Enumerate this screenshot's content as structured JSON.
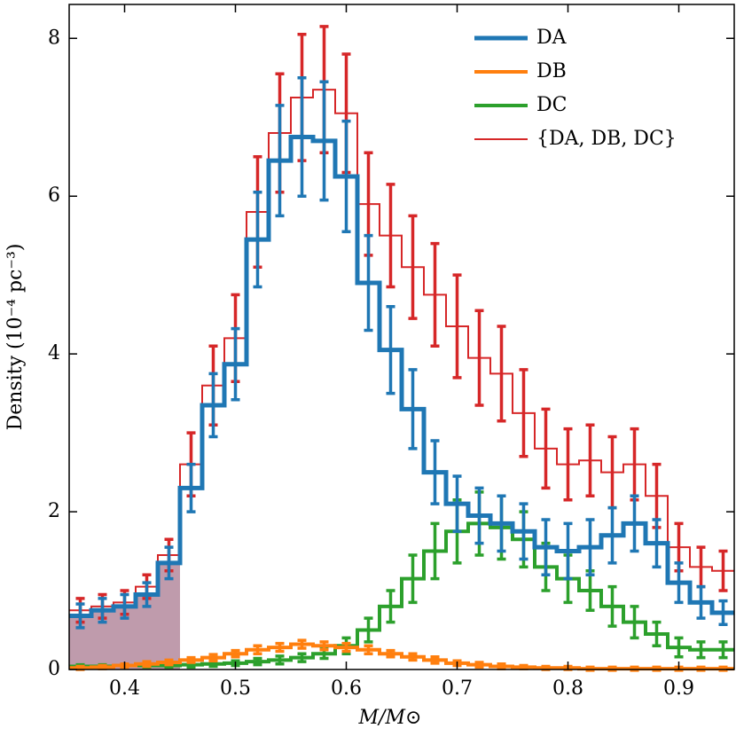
{
  "chart_data": {
    "type": "histogram",
    "xlabel": "M/M⊙",
    "ylabel": "Density (10⁻⁴ pc⁻³)",
    "bins": [
      0.35,
      0.37,
      0.39,
      0.41,
      0.43,
      0.45,
      0.47,
      0.49,
      0.51,
      0.53,
      0.55,
      0.57,
      0.59,
      0.61,
      0.63,
      0.65,
      0.67,
      0.69,
      0.71,
      0.73,
      0.75,
      0.77,
      0.79,
      0.81,
      0.83,
      0.85,
      0.87,
      0.89,
      0.91,
      0.93,
      0.95
    ],
    "xlim": [
      0.35,
      0.95
    ],
    "ylim": [
      0,
      8.43
    ],
    "xticks": [
      0.4,
      0.5,
      0.6,
      0.7,
      0.8,
      0.9
    ],
    "yticks": [
      0,
      2,
      4,
      6,
      8
    ],
    "shaded_span": [
      0.35,
      0.45
    ],
    "shade_color": "#b48a9e",
    "legend": "upper right",
    "series": [
      {
        "name": "DA",
        "color": "#1f77b4",
        "width": 5,
        "values": [
          0.68,
          0.75,
          0.8,
          0.95,
          1.35,
          2.3,
          3.35,
          3.87,
          5.45,
          6.45,
          6.75,
          6.7,
          6.25,
          4.9,
          4.05,
          3.3,
          2.5,
          2.1,
          1.95,
          1.85,
          1.75,
          1.55,
          1.5,
          1.55,
          1.7,
          1.85,
          1.6,
          1.1,
          0.85,
          0.72
        ],
        "errors": [
          0.15,
          0.15,
          0.15,
          0.15,
          0.2,
          0.3,
          0.4,
          0.45,
          0.6,
          0.7,
          0.75,
          0.75,
          0.7,
          0.6,
          0.55,
          0.5,
          0.4,
          0.35,
          0.35,
          0.35,
          0.35,
          0.35,
          0.35,
          0.35,
          0.35,
          0.35,
          0.3,
          0.25,
          0.2,
          0.15
        ]
      },
      {
        "name": "DB",
        "color": "#ff7f0e",
        "width": 4,
        "values": [
          0.02,
          0.03,
          0.05,
          0.07,
          0.09,
          0.12,
          0.15,
          0.2,
          0.25,
          0.28,
          0.32,
          0.3,
          0.28,
          0.25,
          0.2,
          0.16,
          0.12,
          0.08,
          0.06,
          0.04,
          0.03,
          0.02,
          0.02,
          0.01,
          0.01,
          0.01,
          0.01,
          0.01,
          0.01,
          0.01
        ],
        "errors": [
          0.02,
          0.02,
          0.02,
          0.03,
          0.03,
          0.03,
          0.04,
          0.04,
          0.05,
          0.05,
          0.05,
          0.05,
          0.05,
          0.05,
          0.04,
          0.04,
          0.04,
          0.03,
          0.03,
          0.03,
          0.02,
          0.02,
          0.02,
          0.02,
          0.02,
          0.02,
          0.02,
          0.02,
          0.02,
          0.02
        ]
      },
      {
        "name": "DC",
        "color": "#2ca02c",
        "width": 4,
        "values": [
          0.04,
          0.04,
          0.05,
          0.05,
          0.05,
          0.06,
          0.07,
          0.08,
          0.1,
          0.12,
          0.15,
          0.2,
          0.3,
          0.5,
          0.8,
          1.15,
          1.5,
          1.75,
          1.85,
          1.8,
          1.65,
          1.3,
          1.15,
          1.0,
          0.8,
          0.6,
          0.45,
          0.28,
          0.25,
          0.25
        ],
        "errors": [
          0.02,
          0.02,
          0.02,
          0.02,
          0.02,
          0.03,
          0.03,
          0.03,
          0.04,
          0.05,
          0.05,
          0.06,
          0.1,
          0.15,
          0.2,
          0.3,
          0.35,
          0.4,
          0.4,
          0.4,
          0.35,
          0.3,
          0.3,
          0.25,
          0.25,
          0.2,
          0.15,
          0.12,
          0.1,
          0.1
        ]
      },
      {
        "name": "{DA, DB, DC}",
        "color": "#d62728",
        "width": 2,
        "values": [
          0.75,
          0.8,
          0.85,
          1.05,
          1.45,
          2.6,
          3.6,
          4.2,
          5.8,
          6.8,
          7.25,
          7.35,
          7.05,
          5.9,
          5.5,
          5.1,
          4.75,
          4.35,
          3.95,
          3.75,
          3.25,
          2.8,
          2.6,
          2.65,
          2.5,
          2.6,
          2.2,
          1.55,
          1.3,
          1.25
        ],
        "errors": [
          0.15,
          0.15,
          0.15,
          0.15,
          0.2,
          0.4,
          0.5,
          0.55,
          0.7,
          0.75,
          0.8,
          0.8,
          0.75,
          0.65,
          0.65,
          0.65,
          0.65,
          0.65,
          0.6,
          0.6,
          0.55,
          0.5,
          0.45,
          0.45,
          0.45,
          0.45,
          0.4,
          0.3,
          0.25,
          0.25
        ]
      }
    ]
  }
}
